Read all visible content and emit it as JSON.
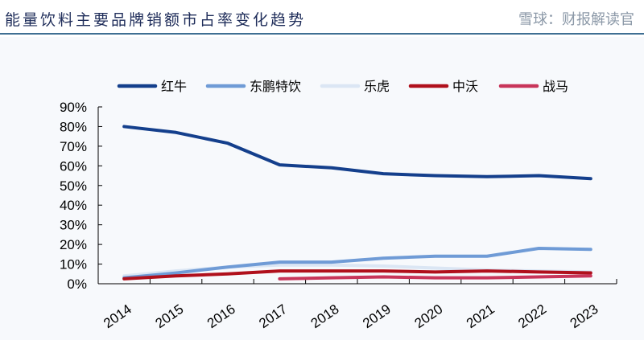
{
  "title": "能量饮料主要品牌销额市占率变化趋势",
  "watermark": "雪球：财报解读官",
  "chart_data": {
    "type": "line",
    "title": "能量饮料主要品牌销额市占率变化趋势",
    "categories": [
      "2014",
      "2015",
      "2016",
      "2017",
      "2018",
      "2019",
      "2020",
      "2021",
      "2022",
      "2023"
    ],
    "ylim": [
      0,
      90
    ],
    "yticks": [
      "0%",
      "10%",
      "20%",
      "30%",
      "40%",
      "50%",
      "60%",
      "70%",
      "80%",
      "90%"
    ],
    "grid": false,
    "legend": "top",
    "series": [
      {
        "name": "红牛",
        "color": "#143f8c",
        "values": [
          80,
          77,
          71.5,
          60.5,
          59,
          56,
          55,
          54.5,
          55,
          53.5
        ]
      },
      {
        "name": "东鹏特饮",
        "color": "#6f9bd6",
        "values": [
          3,
          5.5,
          8.5,
          11,
          11,
          13,
          14,
          14,
          18,
          17.5
        ]
      },
      {
        "name": "乐虎",
        "color": "#dbe6f4",
        "values": [
          4,
          6.5,
          8.5,
          9.5,
          9.5,
          9,
          8,
          7,
          6.5,
          6
        ]
      },
      {
        "name": "中沃",
        "color": "#b0101c",
        "values": [
          2.5,
          4,
          5,
          6.5,
          6.5,
          6.5,
          6,
          6.5,
          6,
          5.5
        ]
      },
      {
        "name": "战马",
        "color": "#c8355a",
        "values": [
          null,
          null,
          null,
          2.5,
          3,
          3.5,
          3,
          3,
          3.5,
          4
        ]
      }
    ]
  }
}
